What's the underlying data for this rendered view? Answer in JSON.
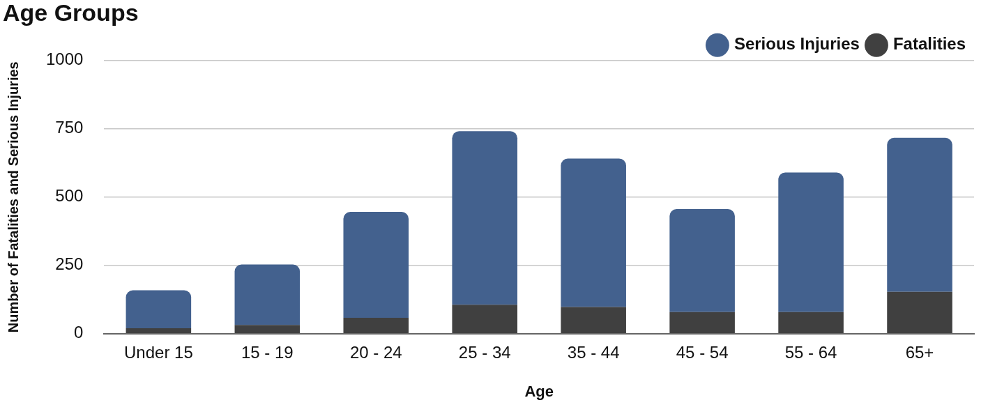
{
  "chart_data": {
    "type": "bar",
    "title": "Age Groups",
    "xlabel": "Age",
    "ylabel": "Number of Fatalities and Serious Injuries",
    "categories": [
      "Under 15",
      "15 - 19",
      "20 - 24",
      "25 - 34",
      "35 - 44",
      "45 - 54",
      "55 - 64",
      "65+"
    ],
    "stacked": true,
    "series": [
      {
        "name": "Fatalities",
        "color": "#404040",
        "values": [
          20,
          32,
          58,
          106,
          98,
          79,
          79,
          153
        ]
      },
      {
        "name": "Serious Injuries",
        "color": "#43618e",
        "values": [
          139,
          221,
          388,
          635,
          543,
          377,
          511,
          564
        ]
      }
    ],
    "ylim": [
      0,
      1000
    ],
    "yticks": [
      0,
      250,
      500,
      750,
      1000
    ],
    "grid": "y",
    "legend": "top right"
  }
}
